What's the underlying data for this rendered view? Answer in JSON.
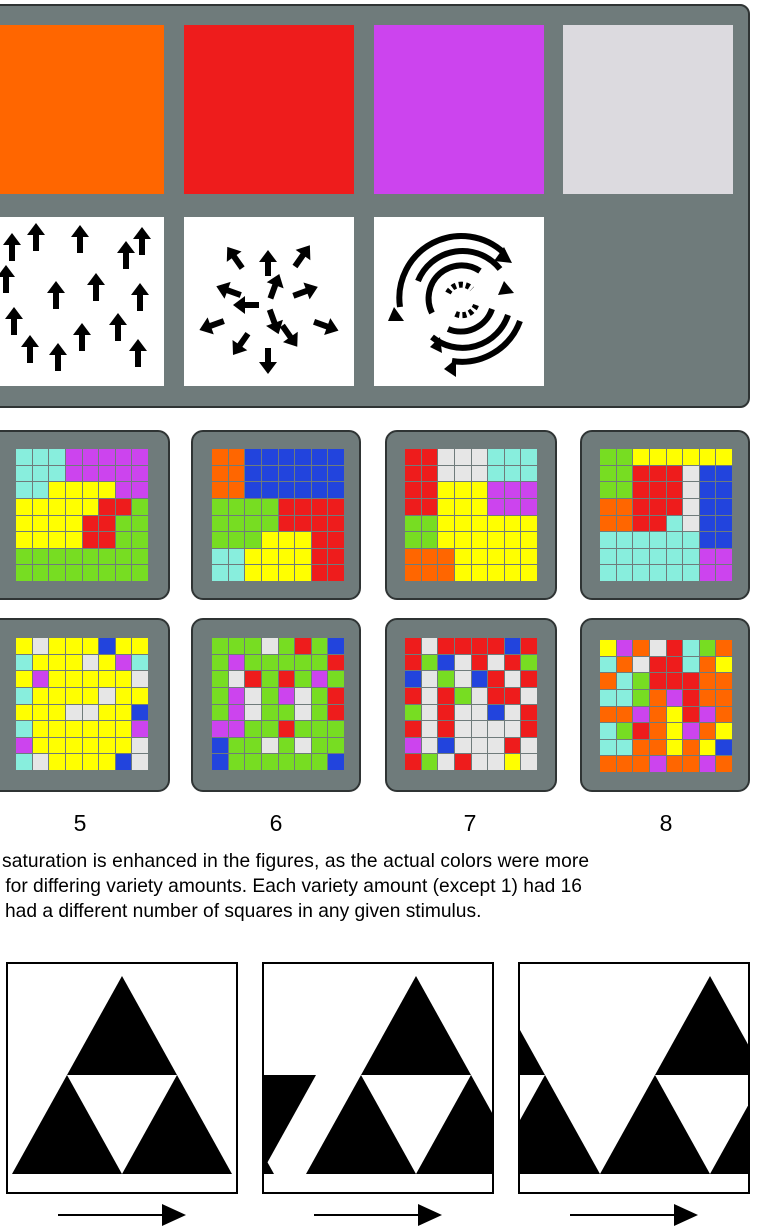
{
  "colors": {
    "orange": "#ff6600",
    "red": "#ee1c1c",
    "purple": "#cc44ee",
    "gray": "#dcdadf",
    "cyan": "#88eedd",
    "yellow": "#ffff00",
    "green": "#77dd22",
    "blue": "#2244dd",
    "white": "#e6e6e6",
    "panel": "#6f7b7b"
  },
  "top_panel": {
    "swatches": [
      "orange",
      "red",
      "purple",
      "gray"
    ],
    "motion_icons": [
      "upward-arrows-icon",
      "radiating-arrows-icon",
      "rotating-arrows-icon"
    ]
  },
  "variety_labels": [
    "5",
    "6",
    "7",
    "8"
  ],
  "caption": {
    "line1": "saturation is enhanced in the figures, as the actual colors were more",
    "line2": " for differing variety amounts. Each variety amount (except 1) had 16",
    "line3": "had a different number of squares in any given stimulus."
  },
  "motion_frames": [
    "frame-1",
    "frame-2",
    "frame-3"
  ]
}
